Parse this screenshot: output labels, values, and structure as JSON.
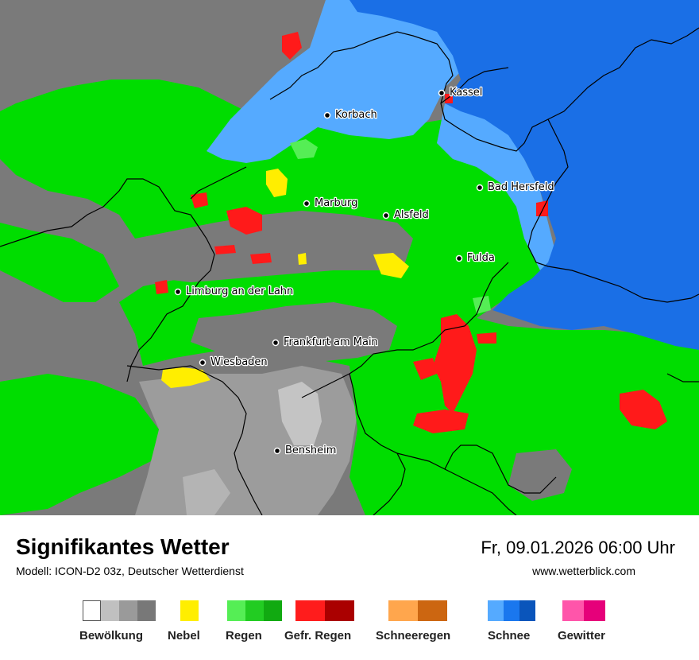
{
  "map": {
    "cities": [
      {
        "name": "Kassel",
        "id": "kassel"
      },
      {
        "name": "Korbach",
        "id": "korbach"
      },
      {
        "name": "Bad Hersfeld",
        "id": "bad-hersfeld"
      },
      {
        "name": "Marburg",
        "id": "marburg"
      },
      {
        "name": "Alsfeld",
        "id": "alsfeld"
      },
      {
        "name": "Fulda",
        "id": "fulda"
      },
      {
        "name": "Limburg an der Lahn",
        "id": "limburg"
      },
      {
        "name": "Frankfurt am Main",
        "id": "frankfurt"
      },
      {
        "name": "Wiesbaden",
        "id": "wiesbaden"
      },
      {
        "name": "Bensheim",
        "id": "bensheim"
      }
    ]
  },
  "footer": {
    "title": "Signifikantes Wetter",
    "subtitle": "Modell: ICON-D2 03z, Deutscher Wetterdienst",
    "datetime": "Fr, 09.01.2026 06:00 Uhr",
    "website": "www.wetterblick.com"
  },
  "legend": [
    {
      "label": "Bewölkung",
      "colors": [
        "#ffffff",
        "#c0c0c0",
        "#9a9a9a",
        "#787878"
      ]
    },
    {
      "label": "Nebel",
      "colors": [
        "#ffee00"
      ]
    },
    {
      "label": "Regen",
      "colors": [
        "#55ee55",
        "#22cc22",
        "#11aa11"
      ]
    },
    {
      "label": "Gefr. Regen",
      "colors": [
        "#ff1c1c",
        "#aa0000"
      ]
    },
    {
      "label": "Schneeregen",
      "colors": [
        "#ffa64d",
        "#cc6611"
      ]
    },
    {
      "label": "Schnee",
      "colors": [
        "#55aaff",
        "#1a77ee",
        "#0a55bb"
      ]
    },
    {
      "label": "Gewitter",
      "colors": [
        "#ff55aa",
        "#e6007a"
      ]
    }
  ]
}
